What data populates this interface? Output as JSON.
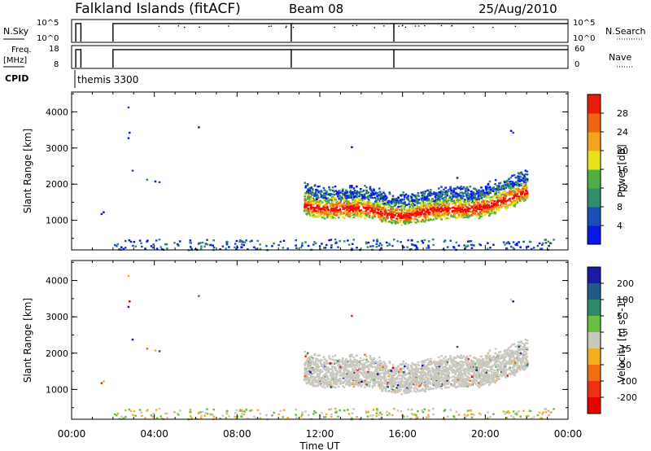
{
  "header": {
    "title": "Falkland Islands (fitACF)",
    "beam": "Beam 08",
    "date": "25/Aug/2010"
  },
  "side_labels": {
    "nsky": "N.Sky",
    "freq": "Freq.",
    "mhz": "[MHz]",
    "cpid": "CPID",
    "nsearch": "N.Search",
    "nave": "Nave",
    "cpid_value": "themis 3300"
  },
  "small_panels": {
    "nsky_ticks": [
      "10^5",
      "10^0"
    ],
    "nsky_right_ticks": [
      "10^5",
      "10^0"
    ],
    "freq_ticks": [
      "18",
      "8"
    ],
    "nave_ticks": [
      "60",
      "0"
    ],
    "trace_level": 0.85,
    "gaps": [
      {
        "start_hour": 0.15,
        "end_hour": 0.25
      },
      {
        "start_hour": 0.35,
        "end_hour": 2.0
      }
    ],
    "vertical_lines_hours": [
      0.2,
      0.45,
      2.0,
      10.62,
      15.58
    ]
  },
  "chart_data": [
    {
      "type": "heatmap",
      "name": "power",
      "ylabel": "Slant Range [km]",
      "colorbar_label": "Power [dB]",
      "ylim": [
        180,
        4550
      ],
      "yticks": [
        1000,
        2000,
        3000,
        4000
      ],
      "colorbar_ticks": [
        "4",
        "8",
        "12",
        "16",
        "20",
        "24",
        "28"
      ],
      "colors": [
        "#0a18e6",
        "#1a4fb8",
        "#2f8f6a",
        "#4fae45",
        "#e8e21c",
        "#f0a51a",
        "#f06512",
        "#e81c0a",
        "#ff0000"
      ]
    },
    {
      "type": "heatmap",
      "name": "velocity",
      "xlabel": "Time UT",
      "ylabel": "Slant Range [km]",
      "colorbar_label": "Velocity [m s^-1]",
      "ylim": [
        180,
        4550
      ],
      "yticks": [
        1000,
        2000,
        3000,
        4000
      ],
      "xlim_hours": [
        0,
        24
      ],
      "xtick_labels": [
        "00:00",
        "04:00",
        "08:00",
        "12:00",
        "16:00",
        "20:00",
        "00:00"
      ],
      "colorbar_ticks": [
        "200",
        "100",
        "50",
        "15",
        "-15",
        "-50",
        "-100",
        "-200"
      ],
      "colors": [
        "#1a1aa8",
        "#1e5a8a",
        "#2e8a6a",
        "#6ac040",
        "#c8c8c0",
        "#f0b020",
        "#f07010",
        "#f03010",
        "#e80000"
      ]
    }
  ]
}
